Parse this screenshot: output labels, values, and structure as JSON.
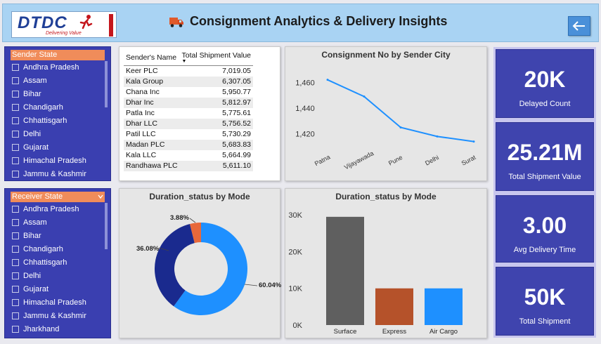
{
  "header": {
    "logo_text": "DTDC",
    "logo_tagline": "Delivering Value",
    "title": "Consignment Analytics & Delivery Insights",
    "truck_icon": "truck-icon",
    "back_icon": "arrow-left-icon"
  },
  "sender_slicer": {
    "title": "Sender State",
    "items": [
      "Andhra Pradesh",
      "Assam",
      "Bihar",
      "Chandigarh",
      "Chhattisgarh",
      "Delhi",
      "Gujarat",
      "Himachal Pradesh",
      "Jammu & Kashmir"
    ]
  },
  "receiver_slicer": {
    "title": "Receiver State",
    "items": [
      "Andhra Pradesh",
      "Assam",
      "Bihar",
      "Chandigarh",
      "Chhattisgarh",
      "Delhi",
      "Gujarat",
      "Himachal Pradesh",
      "Jammu & Kashmir",
      "Jharkhand"
    ]
  },
  "table": {
    "col1": "Sender's Name",
    "col2": "Total Shipment Value",
    "rows": [
      [
        "Keer PLC",
        "7,019.05"
      ],
      [
        "Kala Group",
        "6,307.05"
      ],
      [
        "Chana Inc",
        "5,950.77"
      ],
      [
        "Dhar Inc",
        "5,812.97"
      ],
      [
        "Patla Inc",
        "5,775.61"
      ],
      [
        "Dhar LLC",
        "5,756.52"
      ],
      [
        "Patil LLC",
        "5,730.29"
      ],
      [
        "Madan PLC",
        "5,683.83"
      ],
      [
        "Kala LLC",
        "5,664.99"
      ],
      [
        "Randhawa PLC",
        "5,611.10"
      ]
    ]
  },
  "chart_data": [
    {
      "type": "line",
      "title": "Consignment No by Sender City",
      "x": [
        "Patna",
        "Vijayawada",
        "Pune",
        "Delhi",
        "Surat"
      ],
      "series": [
        {
          "values": [
            1462,
            1449,
            1425,
            1418,
            1414
          ]
        }
      ],
      "yticks": [
        "1,420",
        "1,440",
        "1,460"
      ],
      "ylim": [
        1410,
        1470
      ],
      "color": "#1e90ff"
    },
    {
      "type": "pie",
      "title": "Duration_status by Mode",
      "slices": [
        {
          "value": 60.04,
          "label": "60.04%",
          "color": "#1e90ff"
        },
        {
          "value": 36.08,
          "label": "36.08%",
          "color": "#1a2a8e"
        },
        {
          "value": 3.88,
          "label": "3.88%",
          "color": "#e8683a"
        }
      ]
    },
    {
      "type": "bar",
      "title": "Duration_status by Mode",
      "categories": [
        "Surface",
        "Express",
        "Air Cargo"
      ],
      "values": [
        29500,
        10000,
        10000
      ],
      "colors": [
        "#5f5f5f",
        "#b5522a",
        "#1e90ff"
      ],
      "yticks": [
        "0K",
        "10K",
        "20K",
        "30K"
      ],
      "ylim": [
        0,
        31000
      ]
    }
  ],
  "kpis": [
    {
      "value": "20K",
      "label": "Delayed Count"
    },
    {
      "value": "25.21M",
      "label": "Total Shipment Value"
    },
    {
      "value": "3.00",
      "label": "Avg Delivery Time"
    },
    {
      "value": "50K",
      "label": "Total Shipment"
    }
  ]
}
